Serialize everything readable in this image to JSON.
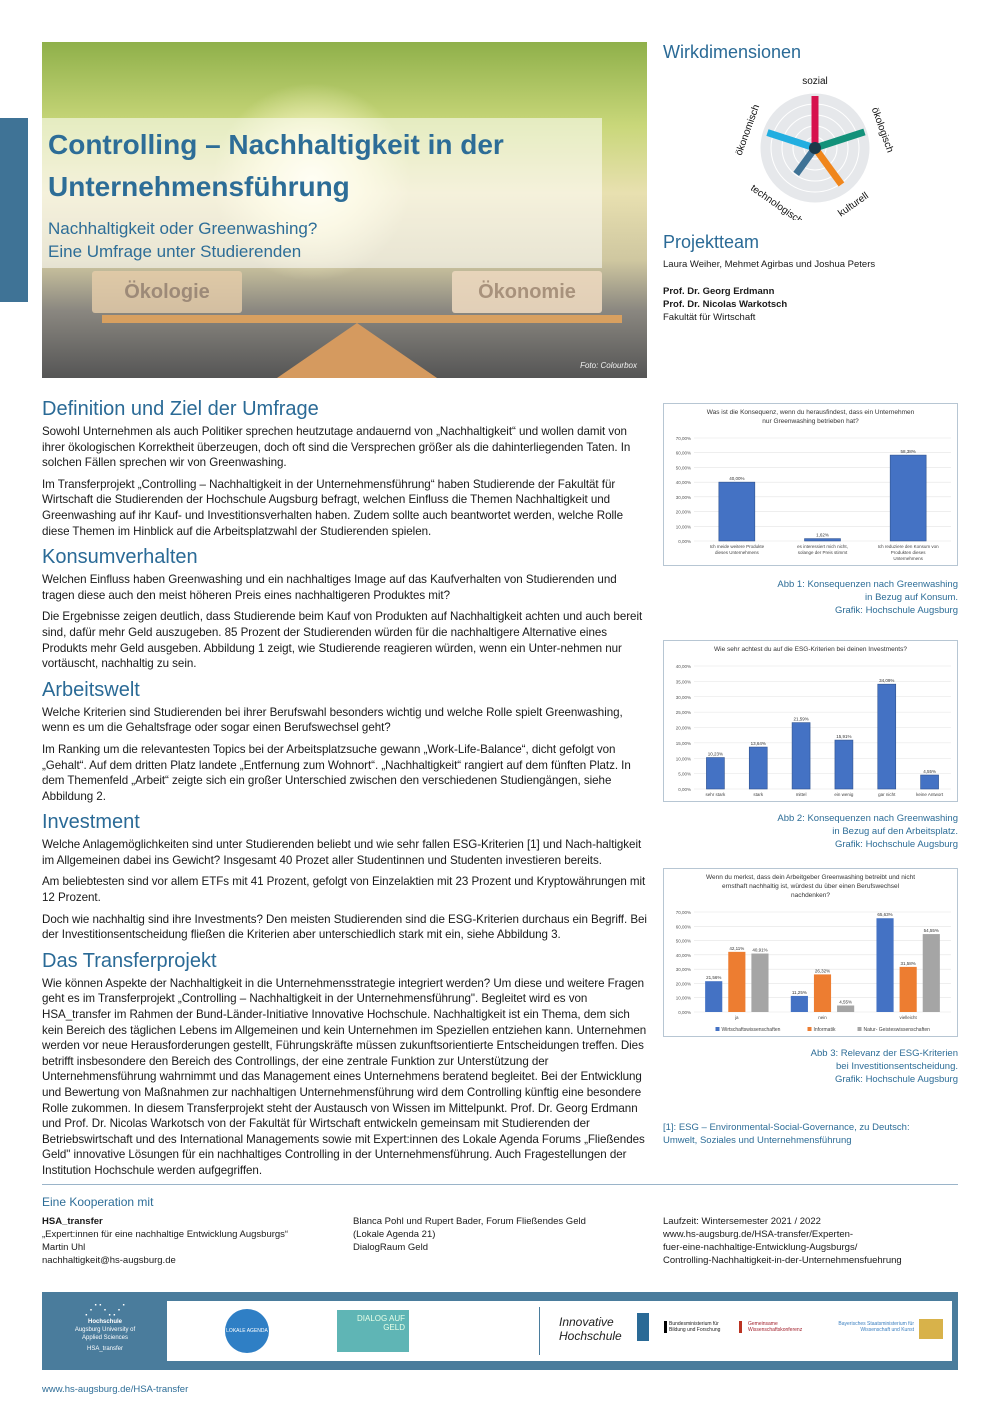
{
  "header": {
    "title": "Controlling – Nachhaltigkeit in der Unternehmensführung",
    "subtitle_line1": "Nachhaltigkeit oder Greenwashing?",
    "subtitle_line2": "Eine Umfrage unter Studierenden",
    "image_labels": {
      "left": "Ökologie",
      "right": "Ökonomie"
    },
    "photo_credit": "Foto: Colourbox"
  },
  "wirkdimensionen": {
    "title": "Wirkdimensionen",
    "axes": [
      {
        "label": "sozial",
        "color": "#d6124e"
      },
      {
        "label": "ökologisch",
        "color": "#13917a"
      },
      {
        "label": "kulturell",
        "color": "#f0861c"
      },
      {
        "label": "technologisch",
        "color": "#3f7396"
      },
      {
        "label": "ökonomisch",
        "color": "#22aee0"
      }
    ]
  },
  "projektteam": {
    "title": "Projektteam",
    "students": "Laura Weiher, Mehmet Agirbas und Joshua Peters",
    "prof1": "Prof. Dr. Georg Erdmann",
    "prof2": "Prof. Dr. Nicolas Warkotsch",
    "faculty": "Fakultät für Wirtschaft"
  },
  "sections": [
    {
      "heading": "Definition und Ziel der Umfrage",
      "paragraphs": [
        "Sowohl Unternehmen als auch Politiker sprechen heutzutage andauernd von „Nachhaltigkeit“ und wollen damit von ihrer ökologischen Korrektheit überzeugen, doch oft sind die Versprechen größer als die dahinterliegenden Taten. In solchen Fällen sprechen wir von Greenwashing.",
        "Im Transferprojekt „Controlling – Nachhaltigkeit in der Unternehmensführung“ haben Studierende der Fakultät für Wirtschaft die Studierenden der Hochschule Augsburg befragt, welchen Einfluss die Themen Nachhaltigkeit und Greenwashing auf ihr Kauf- und Investitionsverhalten haben. Zudem sollte auch beantwortet werden, welche Rolle diese Themen im Hinblick auf die Arbeitsplatzwahl der Studierenden spielen."
      ]
    },
    {
      "heading": "Konsumverhalten",
      "paragraphs": [
        "Welchen Einfluss haben Greenwashing und ein nachhaltiges Image auf das Kaufverhalten von Studierenden und tragen diese auch den meist höheren Preis eines nachhaltigeren Produktes mit?",
        "Die Ergebnisse zeigen deutlich, dass Studierende beim Kauf von Produkten auf Nachhaltigkeit achten und auch bereit sind, dafür mehr Geld auszugeben. 85 Prozent der Studierenden würden für die nachhaltigere Alternative eines Produkts mehr Geld ausgeben. Abbildung 1 zeigt, wie Studierende reagieren würden, wenn ein Unter-nehmen nur vortäuscht, nachhaltig zu sein."
      ]
    },
    {
      "heading": "Arbeitswelt",
      "paragraphs": [
        "Welche Kriterien sind Studierenden bei ihrer Berufswahl besonders wichtig und welche Rolle spielt Greenwashing, wenn es um die Gehaltsfrage oder sogar einen Berufswechsel geht?",
        "Im Ranking um die relevantesten Topics bei der Arbeitsplatzsuche gewann „Work-Life-Balance“, dicht gefolgt von „Gehalt“. Auf dem dritten Platz landete  „Entfernung zum Wohnort“. „Nachhaltigkeit“ rangiert auf dem fünften Platz. In dem Themenfeld „Arbeit“ zeigte sich ein großer Unterschied zwischen den verschiedenen Studiengängen, siehe Abbildung 2."
      ]
    },
    {
      "heading": "Investment",
      "paragraphs": [
        "Welche Anlagemöglichkeiten sind unter Studierenden beliebt und wie sehr fallen ESG-Kriterien [1] und Nach-haltigkeit im Allgemeinen dabei ins Gewicht? Insgesamt 40 Prozet aller Studentinnen und Studenten investieren bereits.",
        "Am beliebtesten sind vor allem ETFs mit 41 Prozent, gefolgt von Einzelaktien mit 23 Prozent und Kryptowährungen mit 12 Prozent.",
        "Doch wie nachhaltig sind ihre Investments? Den meisten Studierenden sind die ESG-Kriterien durchaus ein Begriff. Bei der Investitionsentscheidung fließen die Kriterien aber unterschiedlich stark mit ein, siehe Abbildung 3."
      ]
    },
    {
      "heading": "Das Transferprojekt",
      "paragraphs": [
        "Wie können Aspekte der Nachhaltigkeit in die Unternehmensstrategie integriert werden? Um diese und weitere Fragen geht es im Transferprojekt „Controlling – Nachhaltigkeit in der Unternehmensführung\". Begleitet wird es von HSA_transfer im Rahmen der Bund-Länder-Initiative Innovative Hochschule. Nachhaltigkeit ist ein Thema, dem sich kein Bereich des täglichen Lebens im Allgemeinen und kein Unternehmen im Speziellen entziehen kann. Unternehmen werden vor neue Herausforderungen gestellt, Führungskräfte müssen zukunftsorientierte Entscheidungen treffen. Dies betrifft insbesondere den Bereich des Controllings, der eine zentrale Funktion zur Unterstützung der Unternehmensführung wahrnimmt und das Management eines Unternehmens beratend begleitet. Bei der Entwicklung und Bewertung von Maßnahmen zur nachhaltigen Unternehmensführung wird dem Controlling künftig eine besondere Rolle zukommen. In diesem Transferprojekt steht der Austausch von Wissen im Mittelpunkt. Prof. Dr. Georg Erdmann und Prof. Dr. Nicolas Warkotsch von der Fakultät für Wirtschaft entwickeln gemeinsam mit Studierenden der Betriebswirtschaft und des International Managements sowie mit Expert:innen des Lokale Agenda Forums „Fließendes Geld\" innovative Lösungen für ein nachhaltiges Controlling in der Unternehmensführung. Auch Fragestellungen der Institution Hochschule werden aufgegriffen."
      ]
    }
  ],
  "captions": [
    [
      "Abb 1: Konsequenzen nach Greenwashing",
      "in Bezug auf Konsum.",
      "Grafik: Hochschule Augsburg"
    ],
    [
      "Abb 2: Konsequenzen nach Greenwashing",
      "in Bezug auf den Arbeitsplatz.",
      "Grafik: Hochschule Augsburg"
    ],
    [
      "Abb 3: Relevanz der ESG-Kriterien",
      "bei Investitionsentscheidung.",
      "Grafik: Hochschule Augsburg"
    ]
  ],
  "footnote": [
    "[1]: ESG – Environmental-Social-Governance, zu Deutsch:",
    "Umwelt, Soziales und Unternehmensführung"
  ],
  "chart_data": [
    {
      "type": "bar",
      "title": "Was ist die Konsequenz, wenn du herausfindest, dass ein Unternehmen nur Greenwashing betrieben hat?",
      "categories": [
        "Ich meide weitere Produkte dieses Unternehmens",
        "es interessiert mich nicht, solange der Preis stimmt",
        "Ich reduziere den Konsum von Produkten dieses Unternehmens"
      ],
      "series": [
        {
          "values": [
            40.0,
            1.62,
            58.38
          ],
          "labels": [
            "40,00%",
            "1,62%",
            "58,38%"
          ],
          "color": "#4472c4"
        }
      ],
      "ylim": [
        0,
        70
      ],
      "yticks": [
        "0,00%",
        "10,00%",
        "20,00%",
        "30,00%",
        "40,00%",
        "50,00%",
        "60,00%",
        "70,00%"
      ],
      "grid": true
    },
    {
      "type": "bar",
      "title": "Wie sehr achtest du auf die ESG-Kriterien bei deinen Investments?",
      "categories": [
        "sehr stark",
        "stark",
        "mittel",
        "ein wenig",
        "gar nicht",
        "keine Antwort"
      ],
      "series": [
        {
          "values": [
            10.23,
            13.64,
            21.59,
            15.91,
            34.09,
            4.55
          ],
          "labels": [
            "10,23%",
            "13,64%",
            "21,59%",
            "15,91%",
            "34,09%",
            "4,55%"
          ],
          "color": "#4472c4"
        }
      ],
      "ylim": [
        0,
        40
      ],
      "yticks": [
        "0,00%",
        "5,00%",
        "10,00%",
        "15,00%",
        "20,00%",
        "25,00%",
        "30,00%",
        "35,00%",
        "40,00%"
      ],
      "grid": true
    },
    {
      "type": "bar",
      "title": "Wenn du merkst, dass dein Arbeitgeber Greenwashing betreibt und nicht ernsthaft nachhaltig ist, würdest du über einen Berufswechsel nachdenken?",
      "categories": [
        "ja",
        "nein",
        "vielleicht"
      ],
      "series": [
        {
          "name": "Wirtschaftswissenschaften",
          "values": [
            21.56,
            11.25,
            65.63
          ],
          "labels": [
            "21,56%",
            "11,25%",
            "65,63%"
          ],
          "color": "#4472c4"
        },
        {
          "name": "Informatik",
          "values": [
            42.11,
            26.32,
            31.58
          ],
          "labels": [
            "42,11%",
            "26,32%",
            "31,58%"
          ],
          "color": "#ed7d31"
        },
        {
          "name": "Natur- Geisteswissenschaften",
          "values": [
            40.91,
            4.55,
            54.55
          ],
          "labels": [
            "40,91%",
            "4,55%",
            "54,55%"
          ],
          "color": "#a5a5a5"
        }
      ],
      "ylim": [
        0,
        70
      ],
      "yticks": [
        "0,00%",
        "10,00%",
        "20,00%",
        "30,00%",
        "40,00%",
        "50,00%",
        "60,00%",
        "70,00%"
      ],
      "grid": true,
      "legend": "bottom"
    }
  ],
  "cooperation": {
    "title": "Eine Kooperation mit",
    "col1": {
      "name": "HSA_transfer",
      "line2": "„Expert:innen für eine nachhaltige Entwicklung Augsburgs“",
      "line3": "Martin Uhl",
      "email": "nachhaltigkeit@hs-augsburg.de"
    },
    "col2": {
      "line1": "Blanca Pohl und Rupert Bader, Forum Fließendes Geld",
      "line2": "(Lokale Agenda 21)",
      "line3": "DialogRaum Geld"
    },
    "col3": {
      "line1": "Laufzeit: Wintersemester 2021 / 2022",
      "line2": "www.hs-augsburg.de/HSA-transfer/Experten-",
      "line3": "fuer-eine-nachhaltige-Entwicklung-Augsburgs/",
      "line4": "Controlling-Nachhaltigkeit-in-der-Unternehmensfuehrung"
    }
  },
  "logos": {
    "hsa": [
      "Hochschule",
      "Augsburg University of",
      "Applied Sciences",
      "HSA_transfer"
    ],
    "lokale_agenda": "LOKALE AGENDA",
    "dialog": "DIALOG AUF GELD",
    "innovative": [
      "Innovative",
      "Hochschule"
    ],
    "bmbf": "Bundesministerium für Bildung und Forschung",
    "gwk": "Gemeinsame Wissenschaftskonferenz",
    "bayern": "Bayerisches Staatsministerium für Wissenschaft und Kunst"
  },
  "footer_url": "www.hs-augsburg.de/HSA-transfer"
}
